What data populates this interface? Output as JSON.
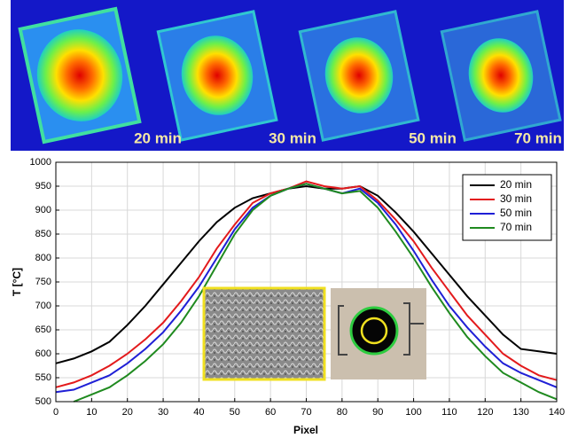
{
  "chart_data": {
    "type": "line",
    "x_label": "Pixel",
    "y_label": "T [°C]",
    "x": [
      0,
      5,
      10,
      15,
      20,
      25,
      30,
      35,
      40,
      45,
      50,
      55,
      60,
      65,
      70,
      75,
      80,
      85,
      90,
      95,
      100,
      105,
      110,
      115,
      120,
      125,
      130,
      135,
      140
    ],
    "series": [
      {
        "name": "20 min",
        "color": "#000000",
        "values": [
          580,
          590,
          605,
          625,
          660,
          700,
          745,
          790,
          835,
          875,
          905,
          925,
          935,
          945,
          950,
          945,
          945,
          950,
          930,
          895,
          855,
          810,
          765,
          720,
          680,
          640,
          610,
          605,
          600
        ]
      },
      {
        "name": "30 min",
        "color": "#e31a1c",
        "values": [
          530,
          540,
          555,
          575,
          600,
          630,
          665,
          710,
          760,
          820,
          870,
          915,
          935,
          945,
          960,
          950,
          945,
          950,
          920,
          880,
          835,
          780,
          730,
          680,
          640,
          600,
          575,
          555,
          545
        ]
      },
      {
        "name": "50 min",
        "color": "#1f1fd6",
        "values": [
          520,
          525,
          540,
          555,
          580,
          610,
          645,
          690,
          740,
          800,
          860,
          905,
          930,
          945,
          955,
          945,
          935,
          945,
          915,
          870,
          815,
          755,
          700,
          655,
          615,
          580,
          560,
          545,
          530
        ]
      },
      {
        "name": "70 min",
        "color": "#1f8a1f",
        "values": [
          null,
          500,
          515,
          530,
          555,
          585,
          620,
          665,
          720,
          785,
          850,
          900,
          930,
          945,
          955,
          945,
          935,
          940,
          905,
          855,
          800,
          740,
          685,
          635,
          595,
          560,
          540,
          520,
          505
        ]
      }
    ],
    "xlim": [
      0,
      140
    ],
    "xticks": [
      0,
      10,
      20,
      30,
      40,
      50,
      60,
      70,
      80,
      90,
      100,
      110,
      120,
      130,
      140
    ],
    "ylim": [
      500,
      1000
    ],
    "yticks": [
      500,
      550,
      600,
      650,
      700,
      750,
      800,
      850,
      900,
      950,
      1000
    ],
    "grid": true,
    "legend": "top-right"
  }
}
